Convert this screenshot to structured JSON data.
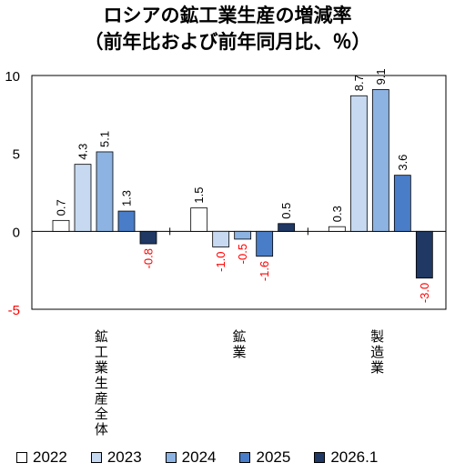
{
  "chart_data": {
    "type": "bar",
    "title": "ロシアの鉱工業生産の増減率",
    "subtitle": "（前年比および前年同月比、％）",
    "categories": [
      "鉱工業生産全体",
      "鉱業",
      "製造業"
    ],
    "ylim": [
      -5,
      10
    ],
    "yticks": [
      10,
      5,
      0,
      -5
    ],
    "series": [
      {
        "name": "2022",
        "values": [
          0.7,
          1.5,
          0.3
        ],
        "labels": [
          "0.7",
          "1.5",
          "0.3"
        ],
        "color": "#ffffff"
      },
      {
        "name": "2023",
        "values": [
          4.3,
          -1.0,
          8.7
        ],
        "labels": [
          "4.3",
          "-1.0",
          "8.7"
        ],
        "color": "#c6d9f1"
      },
      {
        "name": "2024",
        "values": [
          5.1,
          -0.5,
          9.1
        ],
        "labels": [
          "5.1",
          "-0.5",
          "9.1"
        ],
        "color": "#8db3e2"
      },
      {
        "name": "2025",
        "values": [
          1.3,
          -1.6,
          3.6
        ],
        "labels": [
          "1.3",
          "-1.6",
          "3.6"
        ],
        "color": "#4a7dc8"
      },
      {
        "name": "2026.1",
        "values": [
          -0.8,
          0.5,
          -3.0
        ],
        "labels": [
          "-0.8",
          "0.5",
          "-3.0"
        ],
        "color": "#1f3864"
      }
    ],
    "negative_label_color": "#ff0000",
    "negative_tick_color": "#ff0000",
    "grid": false,
    "legend_position": "bottom"
  }
}
